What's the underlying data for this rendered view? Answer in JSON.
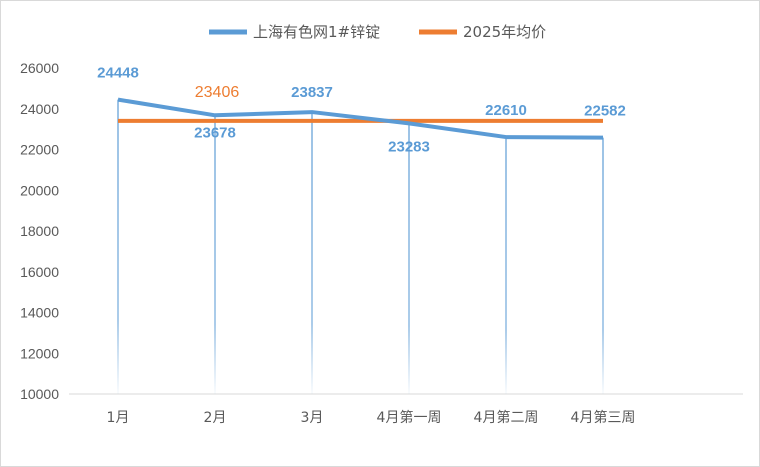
{
  "chart_data": {
    "type": "line",
    "title": "",
    "xlabel": "",
    "ylabel": "",
    "categories": [
      "1月",
      "2月",
      "3月",
      "4月第一周",
      "4月第二周",
      "4月第三周"
    ],
    "ylim": [
      10000,
      26000
    ],
    "yticks": [
      10000,
      12000,
      14000,
      16000,
      18000,
      20000,
      22000,
      24000,
      26000
    ],
    "legend_position": "top",
    "grid": false,
    "drop_lines": true,
    "series": [
      {
        "name": "上海有色网1#锌锭",
        "color": "#5b9bd5",
        "values": [
          24448,
          23678,
          23837,
          23283,
          22610,
          22582
        ],
        "labels": [
          "24448",
          "23678",
          "23837",
          "23283",
          "22610",
          "22582"
        ]
      },
      {
        "name": "2025年均价",
        "color": "#ed7d31",
        "values": [
          23406,
          23406,
          23406,
          23406,
          23406,
          23406
        ],
        "labels": [
          "23406"
        ]
      }
    ]
  }
}
